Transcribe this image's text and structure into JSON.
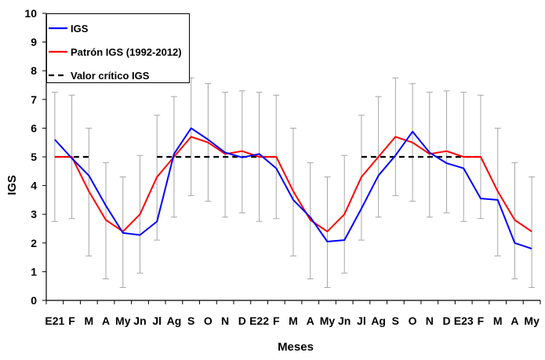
{
  "chart_data": {
    "type": "line",
    "title": "",
    "xlabel": "Meses",
    "ylabel": "IGS",
    "ylim": [
      0,
      10
    ],
    "yticks": [
      "0",
      "1",
      "2",
      "3",
      "4",
      "5",
      "6",
      "7",
      "8",
      "9",
      "10"
    ],
    "categories": [
      "E21",
      "F",
      "M",
      "A",
      "My",
      "Jn",
      "Jl",
      "Ag",
      "S",
      "O",
      "N",
      "D",
      "E22",
      "F",
      "M",
      "A",
      "My",
      "Jn",
      "Jl",
      "Ag",
      "S",
      "O",
      "N",
      "D",
      "E23",
      "F",
      "M",
      "A",
      "My"
    ],
    "grid": false,
    "legend_position": "top-left",
    "series": [
      {
        "name": "IGS",
        "color": "#0000ff",
        "style": "solid",
        "values": [
          5.6,
          4.95,
          4.35,
          3.3,
          2.35,
          2.28,
          2.75,
          5.1,
          6.0,
          5.6,
          5.15,
          4.98,
          5.1,
          4.6,
          3.5,
          2.9,
          2.05,
          2.1,
          3.2,
          4.35,
          5.05,
          5.88,
          5.15,
          4.78,
          4.6,
          3.55,
          3.5,
          2.0,
          1.8
        ]
      },
      {
        "name": "Patrón IGS (1992-2012)",
        "color": "#ff0000",
        "style": "solid",
        "values": [
          5.0,
          5.0,
          3.8,
          2.8,
          2.4,
          3.0,
          4.3,
          5.0,
          5.7,
          5.5,
          5.1,
          5.2,
          5.0,
          5.0,
          3.8,
          2.8,
          2.4,
          3.0,
          4.3,
          5.0,
          5.7,
          5.5,
          5.1,
          5.2,
          5.0,
          5.0,
          3.8,
          2.8,
          2.4
        ],
        "error_low": [
          2.75,
          2.85,
          1.55,
          0.75,
          0.45,
          0.95,
          2.1,
          2.9,
          3.65,
          3.45,
          2.9,
          3.05,
          2.75,
          2.85,
          1.55,
          0.75,
          0.45,
          0.95,
          2.1,
          2.9,
          3.65,
          3.45,
          2.9,
          3.05,
          2.75,
          2.85,
          1.55,
          0.75,
          0.45
        ],
        "error_high": [
          7.25,
          7.15,
          6.0,
          4.8,
          4.3,
          5.05,
          6.45,
          7.1,
          7.75,
          7.55,
          7.25,
          7.3,
          7.25,
          7.15,
          6.0,
          4.8,
          4.3,
          5.05,
          6.45,
          7.1,
          7.75,
          7.55,
          7.25,
          7.3,
          7.25,
          7.15,
          6.0,
          4.8,
          4.3
        ]
      },
      {
        "name": "Valor crítico IGS",
        "color": "#000000",
        "style": "dashed",
        "segments": [
          {
            "from": "E21",
            "to": "M",
            "value": 5.0
          },
          {
            "from": "Jl",
            "to": "F",
            "value": 5.0,
            "from_index": 6,
            "to_index": 13
          },
          {
            "from": "Jl",
            "to": "F",
            "value": 5.0,
            "from_index": 18,
            "to_index": 25
          }
        ]
      }
    ]
  }
}
